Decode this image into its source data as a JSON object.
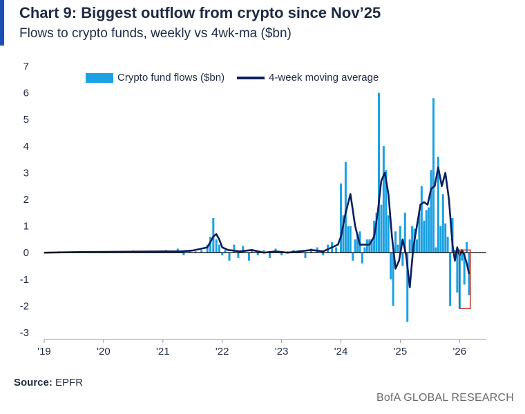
{
  "title": "Chart 9: Biggest outflow from crypto since Nov’25",
  "subtitle": "Flows to crypto funds, weekly vs 4wk-ma ($bn)",
  "source_label": "Source:",
  "source_value": "EPFR",
  "brand": "BofA GLOBAL RESEARCH",
  "colors": {
    "bars": "#1ba1e2",
    "line": "#0c1d5e",
    "accent": "#1a4fb5",
    "highlight": "#c0392b",
    "text": "#1f2a44"
  },
  "chart_data": {
    "type": "bar",
    "ylim": [
      -3,
      7
    ],
    "yticks": [
      7,
      6,
      5,
      4,
      3,
      2,
      1,
      0,
      -1,
      -2,
      -3
    ],
    "ytick_labels": [
      "7",
      "6",
      "5",
      "4",
      "3",
      "2",
      "1",
      "0",
      "-1",
      "-2",
      "-3"
    ],
    "xlim": [
      2019.0,
      2026.45
    ],
    "xticks": [
      2019,
      2020,
      2021,
      2022,
      2023,
      2024,
      2025,
      2026
    ],
    "xtick_labels": [
      "'19",
      "'20",
      "'21",
      "'22",
      "'23",
      "'24",
      "'25",
      "'26"
    ],
    "legend": [
      "Crypto fund flows ($bn)",
      "4-week moving average"
    ],
    "legend_position": "top",
    "highlight": {
      "x_range": [
        2026.0,
        2026.18
      ],
      "y_range": [
        -2.1,
        0.1
      ]
    },
    "series": [
      {
        "name": "Crypto fund flows ($bn)",
        "type": "bar",
        "x": [
          2019.0,
          2019.25,
          2019.5,
          2019.75,
          2020.0,
          2020.25,
          2020.5,
          2020.75,
          2020.92,
          2021.05,
          2021.15,
          2021.25,
          2021.35,
          2021.45,
          2021.55,
          2021.65,
          2021.75,
          2021.8,
          2021.85,
          2021.9,
          2021.95,
          2022.0,
          2022.05,
          2022.12,
          2022.2,
          2022.27,
          2022.35,
          2022.45,
          2022.5,
          2022.6,
          2022.7,
          2022.8,
          2022.9,
          2023.0,
          2023.1,
          2023.2,
          2023.3,
          2023.4,
          2023.5,
          2023.6,
          2023.7,
          2023.78,
          2023.85,
          2023.92,
          2024.0,
          2024.04,
          2024.08,
          2024.12,
          2024.16,
          2024.2,
          2024.24,
          2024.28,
          2024.32,
          2024.36,
          2024.4,
          2024.44,
          2024.48,
          2024.52,
          2024.56,
          2024.6,
          2024.64,
          2024.68,
          2024.72,
          2024.76,
          2024.8,
          2024.84,
          2024.88,
          2024.92,
          2024.96,
          2025.0,
          2025.04,
          2025.08,
          2025.12,
          2025.16,
          2025.2,
          2025.24,
          2025.28,
          2025.32,
          2025.36,
          2025.4,
          2025.44,
          2025.48,
          2025.52,
          2025.56,
          2025.6,
          2025.64,
          2025.68,
          2025.72,
          2025.76,
          2025.8,
          2025.84,
          2025.88,
          2025.92,
          2025.96,
          2026.0,
          2026.04,
          2026.08,
          2026.12,
          2026.16
        ],
        "values": [
          0.0,
          0.05,
          0.05,
          0.03,
          0.05,
          0.03,
          0.08,
          0.08,
          0.05,
          0.1,
          0.05,
          0.15,
          -0.1,
          0.1,
          0.05,
          0.1,
          0.3,
          0.6,
          1.3,
          0.5,
          0.3,
          -0.1,
          0.1,
          -0.3,
          0.3,
          -0.2,
          0.25,
          -0.3,
          0.1,
          -0.1,
          0.1,
          -0.2,
          0.15,
          -0.1,
          0.05,
          0.1,
          0.1,
          -0.2,
          0.15,
          0.2,
          -0.1,
          0.3,
          0.4,
          0.2,
          2.6,
          1.4,
          3.4,
          1.0,
          1.0,
          -0.3,
          0.5,
          0.7,
          0.8,
          -0.4,
          0.2,
          0.5,
          0.5,
          0.5,
          1.2,
          1.5,
          6.0,
          1.8,
          4.0,
          3.1,
          1.4,
          -1.0,
          -2.0,
          0.8,
          0.3,
          1.0,
          -0.5,
          1.5,
          -2.6,
          0.5,
          1.0,
          0.9,
          0.5,
          1.5,
          2.5,
          1.2,
          1.6,
          1.7,
          3.1,
          5.8,
          0.2,
          3.6,
          1.0,
          2.2,
          1.1,
          0.6,
          -2.0,
          1.3,
          0.1,
          -1.5,
          -2.1,
          -0.3,
          -1.2,
          0.4,
          -1.6
        ]
      },
      {
        "name": "4-week moving average",
        "type": "line",
        "x": [
          2019.0,
          2019.5,
          2020.0,
          2020.5,
          2021.0,
          2021.3,
          2021.5,
          2021.75,
          2021.85,
          2021.9,
          2021.95,
          2022.0,
          2022.1,
          2022.3,
          2022.5,
          2022.7,
          2022.9,
          2023.1,
          2023.3,
          2023.5,
          2023.7,
          2023.85,
          2023.95,
          2024.0,
          2024.08,
          2024.16,
          2024.24,
          2024.32,
          2024.4,
          2024.48,
          2024.56,
          2024.62,
          2024.68,
          2024.74,
          2024.8,
          2024.86,
          2024.92,
          2024.98,
          2025.04,
          2025.1,
          2025.16,
          2025.22,
          2025.28,
          2025.34,
          2025.4,
          2025.46,
          2025.52,
          2025.58,
          2025.64,
          2025.7,
          2025.76,
          2025.82,
          2025.88,
          2025.92,
          2025.96,
          2026.0,
          2026.04,
          2026.08,
          2026.12,
          2026.16
        ],
        "values": [
          0.0,
          0.02,
          0.03,
          0.04,
          0.05,
          0.05,
          0.08,
          0.2,
          0.6,
          0.7,
          0.5,
          0.2,
          0.1,
          0.05,
          0.1,
          0.0,
          0.05,
          0.0,
          0.05,
          0.1,
          0.05,
          0.2,
          0.3,
          0.6,
          1.5,
          2.2,
          1.0,
          0.3,
          0.3,
          0.3,
          0.6,
          1.5,
          2.7,
          3.0,
          2.2,
          0.6,
          -0.6,
          -0.3,
          0.5,
          -0.1,
          -1.3,
          0.2,
          1.0,
          1.8,
          1.9,
          1.8,
          2.4,
          2.5,
          3.2,
          2.5,
          3.0,
          2.0,
          0.3,
          -0.3,
          0.2,
          -0.1,
          0.1,
          -0.1,
          -0.4,
          -0.8
        ]
      }
    ]
  }
}
